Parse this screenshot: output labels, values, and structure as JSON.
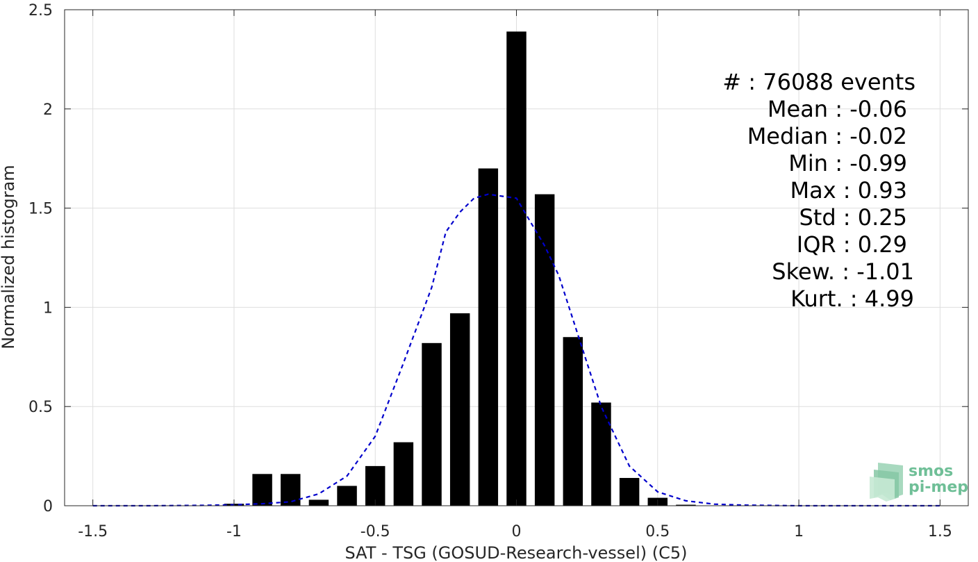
{
  "chart_data": {
    "type": "bar",
    "xlabel": "SAT - TSG (GOSUD-Research-vessel) (C5)",
    "ylabel": "Normalized histogram",
    "xlim": [
      -1.6,
      1.6
    ],
    "ylim": [
      0,
      2.5
    ],
    "grid": true,
    "x_ticks": [
      -1.5,
      -1,
      -0.5,
      0,
      0.5,
      1,
      1.5
    ],
    "x_tick_labels": [
      "-1.5",
      "-1",
      "-0.5",
      "0",
      "0.5",
      "1",
      "1.5"
    ],
    "y_ticks": [
      0,
      0.5,
      1,
      1.5,
      2,
      2.5
    ],
    "y_tick_labels": [
      "0",
      "0.5",
      "1",
      "1.5",
      "2",
      "2.5"
    ],
    "bar_color": "#000000",
    "bars": {
      "x": [
        -1.0,
        -0.9,
        -0.8,
        -0.7,
        -0.6,
        -0.5,
        -0.4,
        -0.3,
        -0.2,
        -0.1,
        0.0,
        0.1,
        0.2,
        0.3,
        0.4,
        0.5,
        0.6
      ],
      "values": [
        0.01,
        0.16,
        0.16,
        0.03,
        0.1,
        0.2,
        0.32,
        0.82,
        0.97,
        1.7,
        2.39,
        1.57,
        0.85,
        0.52,
        0.14,
        0.04,
        0.005
      ],
      "width": 0.07
    },
    "fit_line": {
      "style": "dashed",
      "color": "#0000cc",
      "x": [
        -1.5,
        -1.3,
        -1.1,
        -1.0,
        -0.9,
        -0.8,
        -0.7,
        -0.6,
        -0.5,
        -0.4,
        -0.3,
        -0.25,
        -0.2,
        -0.15,
        -0.1,
        -0.05,
        0.0,
        0.05,
        0.1,
        0.15,
        0.2,
        0.25,
        0.3,
        0.4,
        0.5,
        0.6,
        0.7,
        0.8,
        1.0,
        1.2,
        1.5
      ],
      "y": [
        0.0,
        0.0,
        0.002,
        0.005,
        0.01,
        0.02,
        0.06,
        0.15,
        0.35,
        0.72,
        1.1,
        1.38,
        1.48,
        1.55,
        1.57,
        1.56,
        1.55,
        1.43,
        1.31,
        1.16,
        0.94,
        0.72,
        0.5,
        0.2,
        0.07,
        0.025,
        0.008,
        0.003,
        0.0,
        0.0,
        0.0
      ]
    },
    "annotations": [
      "#  : 76088 events",
      "Mean : -0.06",
      "Median : -0.02",
      "Min : -0.99",
      "Max : 0.93",
      "Std : 0.25",
      "IQR : 0.29",
      "Skew. : -1.01",
      "Kurt. : 4.99"
    ]
  },
  "logo": {
    "line1": "smos",
    "line2": "pi-mep",
    "color": "#5fae8b"
  }
}
